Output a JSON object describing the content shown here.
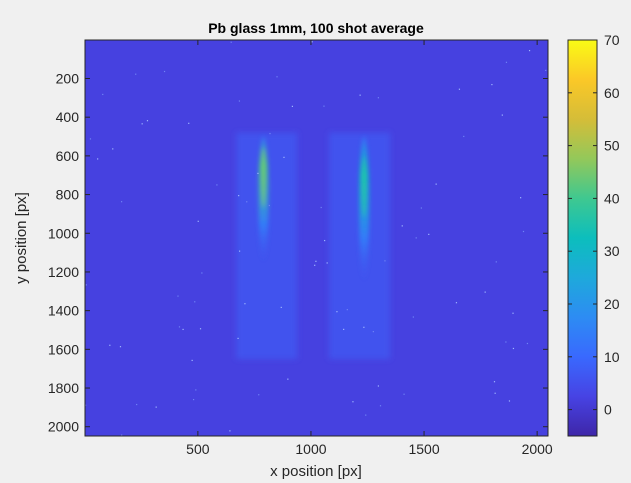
{
  "chart_data": {
    "type": "heatmap",
    "title": "Pb glass 1mm, 100 shot average",
    "xlabel": "x position [px]",
    "ylabel": "y position [px]",
    "xlim": [
      1,
      2048
    ],
    "ylim": [
      1,
      2048
    ],
    "y_reversed": true,
    "x_ticks": [
      500,
      1000,
      1500,
      2000
    ],
    "x_tick_labels": [
      "500",
      "1000",
      "1500",
      "2000"
    ],
    "y_ticks": [
      200,
      400,
      600,
      800,
      1000,
      1200,
      1400,
      1600,
      1800,
      2000
    ],
    "y_tick_labels": [
      "200",
      "400",
      "600",
      "800",
      "1000",
      "1200",
      "1400",
      "1600",
      "1800",
      "2000"
    ],
    "colorbar": {
      "colormap": "parula",
      "clim": [
        -5,
        70
      ],
      "ticks": [
        0,
        10,
        20,
        30,
        40,
        50,
        60,
        70
      ],
      "tick_labels": [
        "0",
        "10",
        "20",
        "30",
        "40",
        "50",
        "60",
        "70"
      ]
    },
    "background_level": 2,
    "regions": [
      {
        "x": [
          670,
          940
        ],
        "y": [
          480,
          1650
        ],
        "level": 6
      },
      {
        "x": [
          1080,
          1350
        ],
        "y": [
          480,
          1650
        ],
        "level": 6
      }
    ],
    "streaks": [
      {
        "x_center": 790,
        "y_range": [
          500,
          1150
        ],
        "peak_y": 650,
        "peak_level": 40
      },
      {
        "x_center": 1235,
        "y_range": [
          500,
          1250
        ],
        "peak_y": 700,
        "peak_level": 32
      }
    ],
    "grid": false,
    "colors": {
      "figure_background": "#f0f0f0",
      "axes_edge": "#262626",
      "text": "#262626"
    }
  }
}
